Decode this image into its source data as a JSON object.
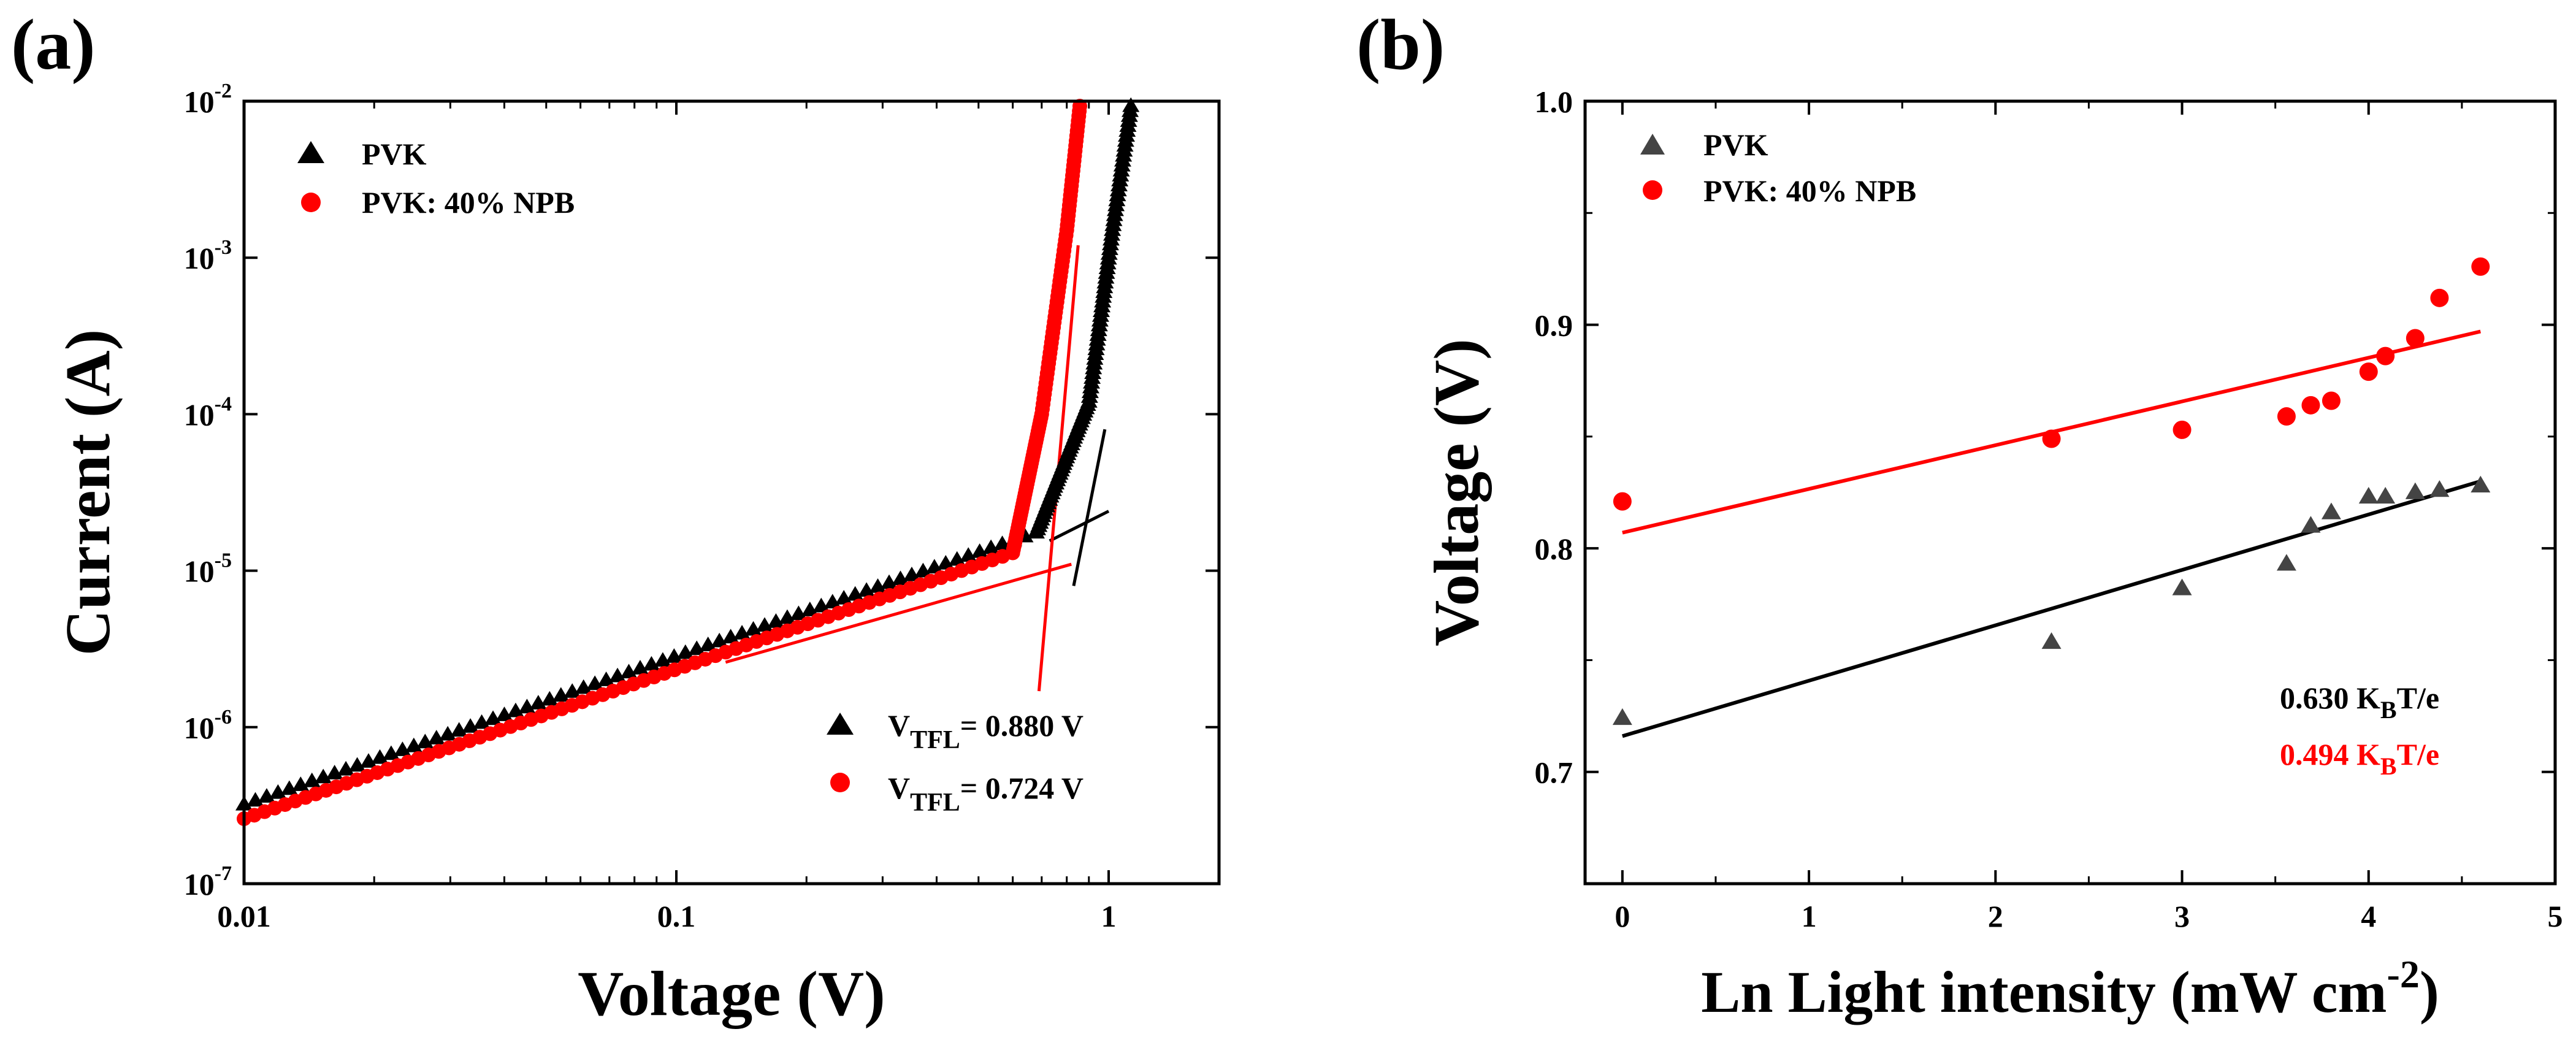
{
  "chart_data": [
    {
      "panel_label": "(a)",
      "type": "scatter",
      "xlabel": "Voltage (V)",
      "ylabel": "Current (A)",
      "xscale": "log",
      "yscale": "log",
      "xlim": [
        0.01,
        1.8
      ],
      "ylim": [
        1e-07,
        0.01
      ],
      "x_ticks": [
        {
          "value": 0.01,
          "label": "0.01"
        },
        {
          "value": 0.1,
          "label": "0.1"
        },
        {
          "value": 1,
          "label": "1"
        }
      ],
      "y_ticks": [
        {
          "value": 1e-07,
          "base": "10",
          "exp": "-7"
        },
        {
          "value": 1e-06,
          "base": "10",
          "exp": "-6"
        },
        {
          "value": 1e-05,
          "base": "10",
          "exp": "-5"
        },
        {
          "value": 0.0001,
          "base": "10",
          "exp": "-4"
        },
        {
          "value": 0.001,
          "base": "10",
          "exp": "-3"
        },
        {
          "value": 0.01,
          "base": "10",
          "exp": "-2"
        }
      ],
      "legend": [
        {
          "name": "PVK",
          "marker": "triangle",
          "color": "#000000"
        },
        {
          "name": "PVK: 40% NPB",
          "marker": "circle",
          "color": "#ff0000"
        }
      ],
      "annotations": [
        {
          "prefix": "V",
          "sub": "TFL",
          "text": "= 0.880 V",
          "marker": "triangle",
          "color": "#000000"
        },
        {
          "prefix": "V",
          "sub": "TFL",
          "text": "= 0.724 V",
          "marker": "circle",
          "color": "#ff0000"
        }
      ],
      "series": [
        {
          "name": "PVK",
          "color": "#000000",
          "marker": "triangle",
          "segments": [
            {
              "v0": 0.01,
              "v1": 0.68,
              "i0": 3.2e-07,
              "i1": 1.75e-05,
              "n": 70
            },
            {
              "v0": 0.68,
              "v1": 0.9,
              "i0": 1.75e-05,
              "i1": 0.00012,
              "n": 40
            },
            {
              "v0": 0.9,
              "v1": 1.02,
              "i0": 0.00012,
              "i1": 0.0015,
              "n": 36
            },
            {
              "v0": 1.02,
              "v1": 1.13,
              "i0": 0.0015,
              "i1": 0.01,
              "n": 26
            }
          ]
        },
        {
          "name": "PVK: 40% NPB",
          "color": "#ff0000",
          "marker": "circle",
          "segments": [
            {
              "v0": 0.01,
              "v1": 0.6,
              "i0": 2.6e-07,
              "i1": 1.3e-05,
              "n": 75
            },
            {
              "v0": 0.6,
              "v1": 0.7,
              "i0": 1.3e-05,
              "i1": 0.0001,
              "n": 40
            },
            {
              "v0": 0.7,
              "v1": 0.8,
              "i0": 0.0001,
              "i1": 0.0015,
              "n": 36
            },
            {
              "v0": 0.8,
              "v1": 0.86,
              "i0": 0.0015,
              "i1": 0.01,
              "n": 26
            }
          ]
        }
      ],
      "fit_lines": [
        {
          "series": "PVK",
          "color": "#000000",
          "x": [
            0.73,
            1.0
          ],
          "y": [
            1.55e-05,
            2.4e-05
          ]
        },
        {
          "series": "PVK",
          "color": "#000000",
          "x": [
            0.83,
            0.98
          ],
          "y": [
            8e-06,
            8e-05
          ]
        },
        {
          "series": "PVK: 40% NPB",
          "color": "#ff0000",
          "x": [
            0.13,
            0.82
          ],
          "y": [
            2.6e-06,
            1.1e-05
          ]
        },
        {
          "series": "PVK: 40% NPB",
          "color": "#ff0000",
          "x": [
            0.69,
            0.85
          ],
          "y": [
            1.7e-06,
            0.0012
          ]
        }
      ]
    },
    {
      "panel_label": "(b)",
      "type": "scatter",
      "xlabel": "Ln Light intensity (mW cm",
      "xlabel_sup": "-2",
      "xlabel_close": ")",
      "ylabel": "Voltage (V)",
      "xlim": [
        -0.2,
        5
      ],
      "ylim": [
        0.65,
        1.0
      ],
      "x_ticks": [
        {
          "value": 0,
          "label": "0"
        },
        {
          "value": 1,
          "label": "1"
        },
        {
          "value": 2,
          "label": "2"
        },
        {
          "value": 3,
          "label": "3"
        },
        {
          "value": 4,
          "label": "4"
        },
        {
          "value": 5,
          "label": "5"
        }
      ],
      "y_ticks": [
        {
          "value": 0.7,
          "label": "0.7"
        },
        {
          "value": 0.8,
          "label": "0.8"
        },
        {
          "value": 0.9,
          "label": "0.9"
        },
        {
          "value": 1.0,
          "label": "1.0"
        }
      ],
      "legend": [
        {
          "name": "PVK",
          "marker": "triangle",
          "color": "#000000"
        },
        {
          "name": "PVK: 40% NPB",
          "marker": "circle",
          "color": "#ff0000"
        }
      ],
      "annotations": [
        {
          "prefix": "0.630 K",
          "sub": "B",
          "text": "T/e",
          "color": "#000000"
        },
        {
          "prefix": "0.494 K",
          "sub": "B",
          "text": "T/e",
          "color": "#ff0000"
        }
      ],
      "series": [
        {
          "name": "PVK",
          "color": "#000000",
          "marker": "triangle",
          "x": [
            0,
            2.3,
            3.0,
            3.56,
            3.69,
            3.8,
            4.0,
            4.09,
            4.25,
            4.38,
            4.6
          ],
          "y": [
            0.724,
            0.758,
            0.782,
            0.793,
            0.81,
            0.816,
            0.823,
            0.823,
            0.825,
            0.826,
            0.828
          ]
        },
        {
          "name": "PVK: 40% NPB",
          "color": "#ff0000",
          "marker": "circle",
          "x": [
            0,
            2.3,
            3.0,
            3.56,
            3.69,
            3.8,
            4.0,
            4.09,
            4.25,
            4.38,
            4.6
          ],
          "y": [
            0.821,
            0.849,
            0.853,
            0.859,
            0.864,
            0.866,
            0.879,
            0.886,
            0.894,
            0.912,
            0.926
          ]
        }
      ],
      "fit_lines": [
        {
          "series": "PVK",
          "color": "#000000",
          "x": [
            0,
            4.6
          ],
          "y": [
            0.716,
            0.83
          ]
        },
        {
          "series": "PVK: 40% NPB",
          "color": "#ff0000",
          "x": [
            0,
            4.6
          ],
          "y": [
            0.807,
            0.897
          ]
        }
      ]
    }
  ]
}
